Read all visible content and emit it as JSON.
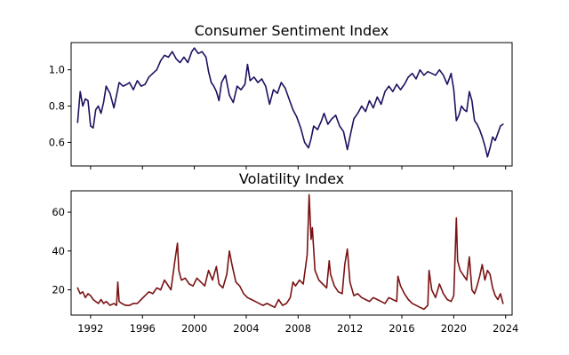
{
  "chart_data": [
    {
      "type": "line",
      "title": "Consumer Sentiment Index",
      "xlabel": "",
      "ylabel": "",
      "xlim": [
        1990.5,
        2024.5
      ],
      "ylim": [
        0.47,
        1.15
      ],
      "x_ticks": [
        1992,
        1996,
        2000,
        2004,
        2008,
        2012,
        2016,
        2020,
        2024
      ],
      "x_tick_labels_visible": false,
      "y_ticks": [
        0.6,
        0.8,
        1.0
      ],
      "y_tick_labels": [
        "0.6",
        "0.8",
        "1.0"
      ],
      "grid": false,
      "series": [
        {
          "color": "#1f1060",
          "x": [
            1991.0,
            1991.2,
            1991.4,
            1991.6,
            1991.8,
            1992.0,
            1992.2,
            1992.4,
            1992.6,
            1992.8,
            1993.0,
            1993.2,
            1993.5,
            1993.8,
            1994.0,
            1994.2,
            1994.5,
            1994.8,
            1995.0,
            1995.3,
            1995.6,
            1995.9,
            1996.2,
            1996.5,
            1996.8,
            1997.1,
            1997.4,
            1997.7,
            1998.0,
            1998.3,
            1998.6,
            1998.9,
            1999.2,
            1999.5,
            1999.8,
            2000.0,
            2000.3,
            2000.6,
            2000.9,
            2001.1,
            2001.3,
            2001.5,
            2001.7,
            2001.9,
            2002.1,
            2002.4,
            2002.7,
            2003.0,
            2003.3,
            2003.6,
            2003.9,
            2004.1,
            2004.3,
            2004.6,
            2004.9,
            2005.2,
            2005.5,
            2005.8,
            2006.1,
            2006.4,
            2006.7,
            2007.0,
            2007.3,
            2007.6,
            2007.9,
            2008.2,
            2008.5,
            2008.8,
            2009.0,
            2009.2,
            2009.5,
            2009.8,
            2010.0,
            2010.3,
            2010.6,
            2010.9,
            2011.2,
            2011.5,
            2011.8,
            2012.0,
            2012.3,
            2012.6,
            2012.9,
            2013.2,
            2013.5,
            2013.8,
            2014.1,
            2014.4,
            2014.7,
            2015.0,
            2015.3,
            2015.6,
            2015.9,
            2016.2,
            2016.5,
            2016.8,
            2017.1,
            2017.4,
            2017.7,
            2018.0,
            2018.3,
            2018.6,
            2018.9,
            2019.2,
            2019.5,
            2019.8,
            2020.0,
            2020.2,
            2020.4,
            2020.6,
            2020.8,
            2021.0,
            2021.2,
            2021.4,
            2021.6,
            2021.8,
            2022.0,
            2022.2,
            2022.4,
            2022.6,
            2022.8,
            2023.0,
            2023.2,
            2023.4,
            2023.6,
            2023.8
          ],
          "y": [
            0.71,
            0.88,
            0.8,
            0.84,
            0.83,
            0.69,
            0.68,
            0.78,
            0.8,
            0.76,
            0.82,
            0.91,
            0.87,
            0.79,
            0.86,
            0.93,
            0.91,
            0.92,
            0.93,
            0.89,
            0.94,
            0.91,
            0.92,
            0.96,
            0.98,
            1.0,
            1.05,
            1.08,
            1.07,
            1.1,
            1.06,
            1.04,
            1.07,
            1.04,
            1.1,
            1.12,
            1.09,
            1.1,
            1.07,
            0.99,
            0.93,
            0.91,
            0.88,
            0.83,
            0.93,
            0.97,
            0.86,
            0.82,
            0.91,
            0.89,
            0.92,
            1.03,
            0.94,
            0.96,
            0.93,
            0.95,
            0.91,
            0.81,
            0.89,
            0.87,
            0.93,
            0.9,
            0.84,
            0.78,
            0.74,
            0.68,
            0.6,
            0.57,
            0.62,
            0.69,
            0.67,
            0.72,
            0.76,
            0.7,
            0.73,
            0.75,
            0.69,
            0.66,
            0.56,
            0.63,
            0.73,
            0.76,
            0.8,
            0.77,
            0.83,
            0.79,
            0.85,
            0.81,
            0.88,
            0.91,
            0.88,
            0.92,
            0.89,
            0.92,
            0.96,
            0.98,
            0.95,
            1.0,
            0.97,
            0.99,
            0.98,
            0.97,
            1.0,
            0.97,
            0.92,
            0.98,
            0.89,
            0.72,
            0.75,
            0.8,
            0.78,
            0.77,
            0.88,
            0.83,
            0.72,
            0.7,
            0.67,
            0.63,
            0.58,
            0.52,
            0.57,
            0.63,
            0.61,
            0.65,
            0.69,
            0.7
          ]
        }
      ]
    },
    {
      "type": "line",
      "title": "Volatility Index",
      "xlabel": "",
      "ylabel": "",
      "xlim": [
        1990.5,
        2024.5
      ],
      "ylim": [
        7,
        71
      ],
      "x_ticks": [
        1992,
        1996,
        2000,
        2004,
        2008,
        2012,
        2016,
        2020,
        2024
      ],
      "x_tick_labels": [
        "1992",
        "1996",
        "2000",
        "2004",
        "2008",
        "2012",
        "2016",
        "2020",
        "2024"
      ],
      "y_ticks": [
        20,
        40,
        60
      ],
      "y_tick_labels": [
        "20",
        "40",
        "60"
      ],
      "grid": false,
      "series": [
        {
          "color": "#7a1212",
          "x": [
            1991.0,
            1991.2,
            1991.4,
            1991.6,
            1991.8,
            1992.0,
            1992.2,
            1992.4,
            1992.6,
            1992.8,
            1993.0,
            1993.2,
            1993.5,
            1993.8,
            1994.0,
            1994.1,
            1994.2,
            1994.4,
            1994.7,
            1995.0,
            1995.3,
            1995.6,
            1995.9,
            1996.2,
            1996.5,
            1996.8,
            1997.1,
            1997.4,
            1997.7,
            1997.9,
            1998.2,
            1998.5,
            1998.7,
            1998.8,
            1999.0,
            1999.3,
            1999.6,
            1999.9,
            2000.2,
            2000.5,
            2000.8,
            2001.1,
            2001.4,
            2001.7,
            2001.9,
            2002.2,
            2002.5,
            2002.7,
            2002.9,
            2003.2,
            2003.5,
            2003.8,
            2004.1,
            2004.4,
            2004.7,
            2005.0,
            2005.3,
            2005.6,
            2005.9,
            2006.2,
            2006.5,
            2006.8,
            2007.1,
            2007.4,
            2007.6,
            2007.8,
            2008.1,
            2008.4,
            2008.7,
            2008.85,
            2009.0,
            2009.1,
            2009.3,
            2009.6,
            2009.9,
            2010.2,
            2010.4,
            2010.5,
            2010.8,
            2011.1,
            2011.4,
            2011.6,
            2011.8,
            2012.0,
            2012.3,
            2012.6,
            2012.9,
            2013.2,
            2013.5,
            2013.8,
            2014.1,
            2014.4,
            2014.7,
            2015.0,
            2015.3,
            2015.6,
            2015.7,
            2015.9,
            2016.2,
            2016.5,
            2016.8,
            2017.1,
            2017.4,
            2017.7,
            2018.0,
            2018.1,
            2018.3,
            2018.6,
            2018.9,
            2019.2,
            2019.5,
            2019.8,
            2020.0,
            2020.2,
            2020.3,
            2020.5,
            2020.8,
            2021.0,
            2021.2,
            2021.4,
            2021.6,
            2021.8,
            2022.0,
            2022.2,
            2022.4,
            2022.6,
            2022.8,
            2023.0,
            2023.2,
            2023.4,
            2023.6,
            2023.8
          ],
          "y": [
            21,
            18,
            19,
            16,
            18,
            17,
            15,
            14,
            13,
            15,
            13,
            14,
            12,
            13,
            12,
            24,
            14,
            13,
            12,
            12,
            13,
            13,
            15,
            17,
            19,
            18,
            21,
            20,
            25,
            23,
            20,
            35,
            44,
            30,
            25,
            26,
            23,
            22,
            26,
            24,
            22,
            30,
            25,
            32,
            23,
            21,
            28,
            40,
            33,
            24,
            22,
            18,
            16,
            15,
            14,
            13,
            12,
            13,
            12,
            11,
            15,
            12,
            13,
            16,
            24,
            22,
            25,
            23,
            38,
            69,
            46,
            52,
            30,
            25,
            23,
            21,
            35,
            28,
            22,
            19,
            18,
            33,
            41,
            24,
            17,
            18,
            16,
            15,
            14,
            16,
            15,
            14,
            13,
            16,
            15,
            14,
            27,
            22,
            18,
            15,
            13,
            12,
            11,
            10,
            12,
            30,
            20,
            16,
            23,
            18,
            15,
            14,
            17,
            57,
            35,
            30,
            27,
            25,
            37,
            20,
            18,
            22,
            27,
            33,
            25,
            30,
            28,
            21,
            17,
            15,
            18,
            13
          ]
        }
      ]
    }
  ]
}
